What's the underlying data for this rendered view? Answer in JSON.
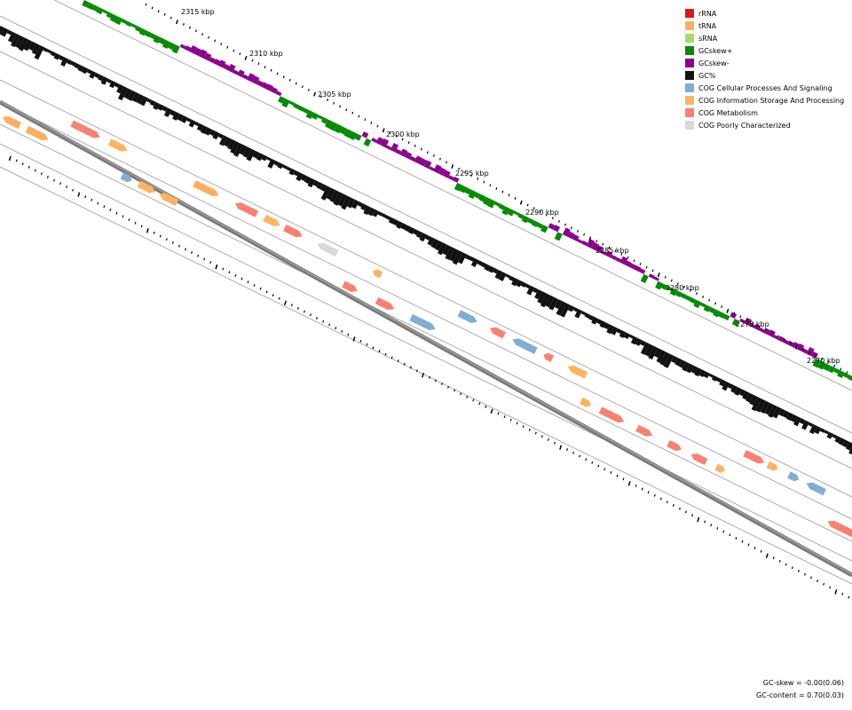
{
  "ticks": [
    {
      "label": "2315 kbp"
    },
    {
      "label": "2310 kbp"
    },
    {
      "label": "2305 kbp"
    },
    {
      "label": "2300 kbp"
    },
    {
      "label": "2295 kbp"
    },
    {
      "label": "2290 kbp"
    },
    {
      "label": "2285 kbp"
    },
    {
      "label": "2280 kbp"
    },
    {
      "label": "2275 kbp"
    },
    {
      "label": "2270 kbp"
    }
  ],
  "legend": [
    {
      "label": "rRNA",
      "color": "#d7191c"
    },
    {
      "label": "tRNA",
      "color": "#fdae61"
    },
    {
      "label": "sRNA",
      "color": "#a6d96a"
    },
    {
      "label": "GCskew+",
      "color": "#008b00"
    },
    {
      "label": "GCskew-",
      "color": "#8b008b"
    },
    {
      "label": "GC%",
      "color": "#111111"
    },
    {
      "label": "COG Cellular Processes And Signaling",
      "color": "#7fadd4"
    },
    {
      "label": "COG Information Storage And Processing",
      "color": "#fdb462"
    },
    {
      "label": "COG Metabolism",
      "color": "#fb8072"
    },
    {
      "label": "COG Poorly Characterized",
      "color": "#d9d9d9"
    }
  ],
  "stats": {
    "gc_skew": "GC-skew = -0.00(0.06)",
    "gc_content": "GC-content = 0.70(0.03)"
  }
}
